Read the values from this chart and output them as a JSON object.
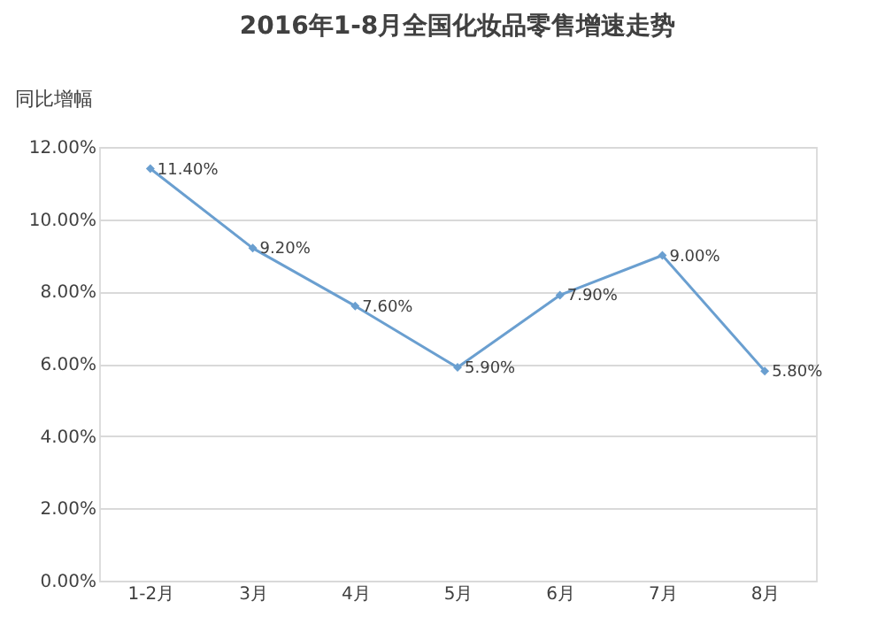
{
  "chart_data": {
    "type": "line",
    "title": "2016年1-8月全国化妆品零售增速走势",
    "ylabel": "同比增幅",
    "categories": [
      "1-2月",
      "3月",
      "4月",
      "5月",
      "6月",
      "7月",
      "8月"
    ],
    "series": [
      {
        "color": "#6a9fd0",
        "values": [
          11.4,
          9.2,
          7.6,
          5.9,
          7.9,
          9.0,
          5.8
        ],
        "value_labels": [
          "11.40%",
          "9.20%",
          "7.60%",
          "5.90%",
          "7.90%",
          "9.00%",
          "5.80%"
        ]
      }
    ],
    "ylim": [
      0,
      12
    ],
    "yticks": [
      {
        "value": 0,
        "label": "0.00%"
      },
      {
        "value": 2,
        "label": "2.00%"
      },
      {
        "value": 4,
        "label": "4.00%"
      },
      {
        "value": 6,
        "label": "6.00%"
      },
      {
        "value": 8,
        "label": "8.00%"
      },
      {
        "value": 10,
        "label": "10.00%"
      },
      {
        "value": 12,
        "label": "12.00%"
      }
    ],
    "grid": "y",
    "marker": "diamond",
    "line_style": "solid"
  }
}
